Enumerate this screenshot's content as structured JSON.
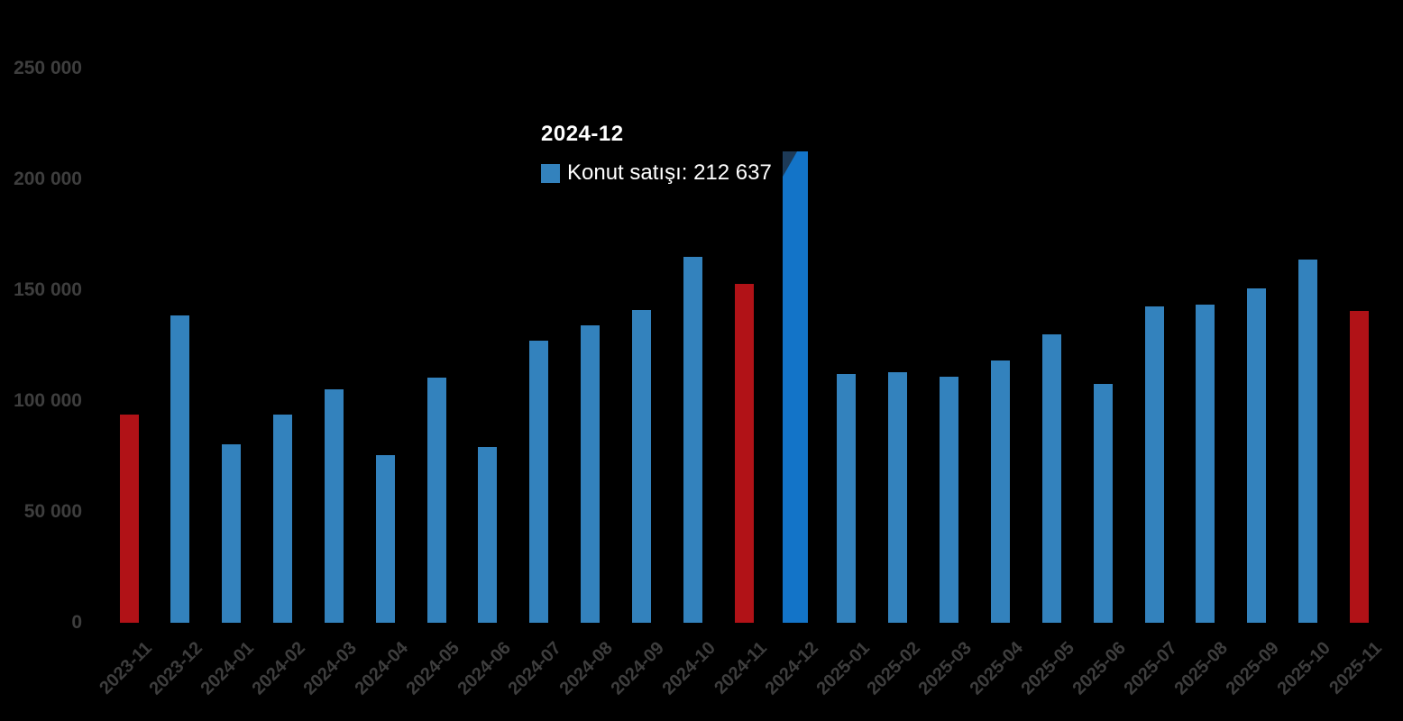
{
  "chart_data": {
    "type": "bar",
    "title": "",
    "xlabel": "",
    "ylabel": "",
    "categories": [
      "2023-11",
      "2023-12",
      "2024-01",
      "2024-02",
      "2024-03",
      "2024-04",
      "2024-05",
      "2024-06",
      "2024-07",
      "2024-08",
      "2024-09",
      "2024-10",
      "2024-11",
      "2024-12",
      "2025-01",
      "2025-02",
      "2025-03",
      "2025-04",
      "2025-05",
      "2025-06",
      "2025-07",
      "2025-08",
      "2025-09",
      "2025-10",
      "2025-11"
    ],
    "series": [
      {
        "name": "Konut satışı",
        "values": [
          93761,
          138577,
          80308,
          93902,
          105476,
          75569,
          110588,
          79313,
          127088,
          134155,
          140919,
          165138,
          153014,
          212637,
          112173,
          112818,
          110795,
          118359,
          130025,
          107723,
          142858,
          143319,
          150657,
          164000,
          140500
        ]
      }
    ],
    "highlighted_categories": [
      "2023-11",
      "2024-11",
      "2025-11"
    ],
    "hovered_category": "2024-12",
    "ylim": [
      0,
      250000
    ],
    "ytick_values": [
      0,
      50000,
      100000,
      150000,
      200000,
      250000
    ],
    "ytick_labels": [
      "0",
      "50 000",
      "100 000",
      "150 000",
      "200 000",
      "250 000"
    ],
    "grid": false,
    "legend_position": "none",
    "colors": {
      "bar_blue": "#3382bd",
      "bar_blue_hover": "#1374c8",
      "bar_red": "#b11217",
      "axis_label": "#3e3e3e",
      "background": "#000000",
      "tooltip_text": "#ffffff",
      "tooltip_corner": "#1d3a57"
    }
  },
  "tooltip": {
    "title": "2024-12",
    "series_label": "Konut satışı",
    "value": "212 637",
    "text": "Konut satışı: 212 637",
    "marker_color": "#3382bd"
  }
}
